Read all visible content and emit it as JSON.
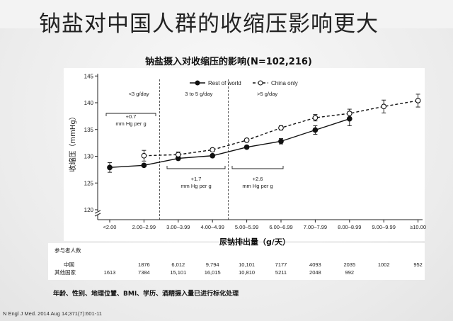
{
  "slide": {
    "title": "钠盐对中国人群的收缩压影响更大",
    "footnote": "年龄、性别、地理位置、BMI、学历、酒精摄入量已进行标化处理",
    "citation": "N Engl J Med. 2014 Aug 14;371(7):601-11"
  },
  "chart_data": {
    "type": "line",
    "title": "钠盐摄入对收缩压的影响(N=102,216)",
    "xlabel": "尿钠排出量（g/天）",
    "ylabel": "收缩压（mmHg）",
    "ylim": [
      120,
      145
    ],
    "yticks": [
      120,
      125,
      130,
      135,
      140,
      145
    ],
    "categories": [
      "<2.00",
      "2.00–2.99",
      "3.00–3.99",
      "4.00–4.99",
      "5.00–5.99",
      "6.00–6.99",
      "7.00–7.99",
      "8.00–8.99",
      "9.00–9.99",
      "≥10.00"
    ],
    "legend": {
      "position": "top-right",
      "entries": [
        "Rest of world",
        "China only"
      ]
    },
    "series": [
      {
        "name": "Rest of world",
        "style": "solid-filled",
        "color": "#111111",
        "values": [
          127.9,
          128.3,
          129.6,
          130.1,
          131.7,
          132.8,
          134.9,
          137.0,
          null,
          null
        ],
        "errors": [
          0.9,
          0.3,
          0.3,
          0.3,
          0.3,
          0.5,
          0.8,
          1.3,
          null,
          null
        ]
      },
      {
        "name": "China only",
        "style": "dashed-open",
        "color": "#111111",
        "values": [
          null,
          130.1,
          130.3,
          131.2,
          133.0,
          135.3,
          137.2,
          138.0,
          139.3,
          140.4
        ],
        "errors": [
          null,
          1.0,
          0.5,
          0.3,
          0.3,
          0.4,
          0.6,
          0.8,
          1.2,
          1.2
        ]
      }
    ],
    "regions": [
      {
        "label": "<3 g/day",
        "slope": "+0.7\nmm Hg per g"
      },
      {
        "label": "3 to 5 g/day",
        "slope": "+1.7\nmm Hg per g"
      },
      {
        "label": ">5 g/day",
        "slope": "+2.6\nmm Hg per g"
      }
    ],
    "participants": {
      "header": "参与者人数",
      "rows": [
        {
          "label": "中国",
          "values": [
            "",
            "1876",
            "6,012",
            "9,794",
            "10,101",
            "7177",
            "4093",
            "2035",
            "1002",
            "952"
          ]
        },
        {
          "label": "其他国家",
          "values": [
            "1613",
            "7384",
            "15,101",
            "16,015",
            "10,810",
            "5211",
            "2048",
            "992",
            "",
            ""
          ]
        }
      ]
    }
  }
}
